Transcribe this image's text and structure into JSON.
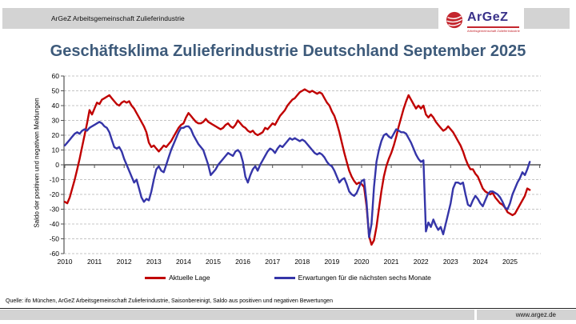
{
  "header": {
    "bar_text": "ArGeZ Arbeitsgemeinschaft Zulieferindustrie",
    "logo": {
      "name": "ArGeZ",
      "subtitle": "Arbeitsgemeinschaft Zulieferindustrie"
    }
  },
  "title": "Geschäftsklima Zulieferindustrie Deutschland September 2025",
  "chart_data": {
    "type": "line",
    "title": "Geschäftsklima Zulieferindustrie Deutschland September 2025",
    "xlabel": "",
    "ylabel": "Saldo der positiven und negativen Meldungen",
    "ylim": [
      -60,
      60
    ],
    "y_tick_step": 10,
    "grid": "horizontal-dashed",
    "legend_position": "bottom",
    "x_start": "2010-01",
    "x_end": "2025-09",
    "x_frequency": "monthly",
    "x_ticks": [
      2010,
      2011,
      2012,
      2013,
      2014,
      2015,
      2016,
      2017,
      2018,
      2019,
      2020,
      2021,
      2022,
      2023,
      2024,
      2025
    ],
    "series": [
      {
        "name": "Aktuelle Lage",
        "color": "#C00000",
        "values": [
          -25,
          -26,
          -22,
          -16,
          -10,
          -3,
          4,
          12,
          20,
          28,
          37,
          34,
          38,
          42,
          41,
          44,
          45,
          46,
          47,
          45,
          43,
          41,
          40,
          42,
          43,
          42,
          43,
          40,
          38,
          35,
          32,
          29,
          26,
          22,
          15,
          12,
          13,
          11,
          9,
          11,
          13,
          12,
          14,
          16,
          19,
          22,
          25,
          27,
          28,
          32,
          35,
          33,
          31,
          29,
          28,
          28,
          29,
          31,
          29,
          28,
          27,
          26,
          25,
          24,
          25,
          27,
          28,
          26,
          25,
          27,
          30,
          28,
          26,
          25,
          23,
          22,
          23,
          21,
          20,
          21,
          22,
          25,
          24,
          26,
          28,
          27,
          30,
          33,
          35,
          37,
          40,
          42,
          44,
          45,
          47,
          49,
          50,
          51,
          50,
          49,
          50,
          49,
          48,
          49,
          48,
          45,
          42,
          40,
          36,
          33,
          28,
          22,
          15,
          8,
          2,
          -4,
          -8,
          -11,
          -13,
          -12,
          -13,
          -15,
          -28,
          -48,
          -54,
          -51,
          -42,
          -30,
          -18,
          -8,
          -1,
          4,
          8,
          13,
          19,
          26,
          32,
          38,
          43,
          47,
          44,
          41,
          38,
          40,
          38,
          40,
          34,
          32,
          34,
          32,
          29,
          27,
          25,
          23,
          24,
          26,
          24,
          22,
          19,
          16,
          13,
          9,
          4,
          0,
          -3,
          -3,
          -6,
          -8,
          -12,
          -16,
          -18,
          -19,
          -20,
          -19,
          -22,
          -24,
          -26,
          -27,
          -29,
          -32,
          -33,
          -34,
          -33,
          -30,
          -27,
          -24,
          -21,
          -16,
          -17
        ]
      },
      {
        "name": "Erwartungen für die nächsten sechs Monate",
        "color": "#3535A8",
        "values": [
          13,
          15,
          17,
          19,
          21,
          22,
          21,
          23,
          24,
          23,
          25,
          26,
          27,
          28,
          29,
          28,
          26,
          25,
          22,
          17,
          12,
          11,
          12,
          9,
          4,
          0,
          -4,
          -8,
          -12,
          -10,
          -16,
          -22,
          -25,
          -23,
          -24,
          -18,
          -10,
          -3,
          -1,
          -4,
          -5,
          0,
          5,
          10,
          14,
          18,
          22,
          25,
          25,
          26,
          26,
          24,
          20,
          17,
          14,
          12,
          10,
          5,
          0,
          -7,
          -5,
          -3,
          0,
          2,
          4,
          6,
          8,
          7,
          6,
          9,
          10,
          8,
          2,
          -8,
          -12,
          -7,
          -3,
          -1,
          -4,
          0,
          3,
          6,
          9,
          11,
          10,
          8,
          11,
          13,
          12,
          14,
          16,
          18,
          17,
          18,
          17,
          16,
          17,
          16,
          14,
          12,
          10,
          8,
          7,
          8,
          7,
          5,
          2,
          0,
          -1,
          -4,
          -8,
          -12,
          -10,
          -9,
          -13,
          -18,
          -20,
          -21,
          -19,
          -15,
          -11,
          -10,
          -25,
          -49,
          -40,
          -15,
          2,
          10,
          16,
          20,
          21,
          19,
          18,
          21,
          24,
          23,
          22,
          22,
          21,
          18,
          15,
          11,
          7,
          4,
          2,
          3,
          -45,
          -39,
          -42,
          -37,
          -41,
          -44,
          -42,
          -47,
          -40,
          -33,
          -26,
          -16,
          -12,
          -12,
          -13,
          -12,
          -20,
          -27,
          -28,
          -24,
          -21,
          -23,
          -26,
          -28,
          -24,
          -20,
          -18,
          -18,
          -19,
          -20,
          -22,
          -25,
          -29,
          -30,
          -26,
          -20,
          -16,
          -12,
          -9,
          -5,
          -7,
          -3,
          2
        ]
      }
    ]
  },
  "footer": {
    "source": "Quelle: ifo München, ArGeZ Arbeitsgemeinschaft Zulieferindustrie, Saisonbereinigt, Saldo aus positiven und negativen Bewertungen",
    "website": "www.argez.de"
  }
}
